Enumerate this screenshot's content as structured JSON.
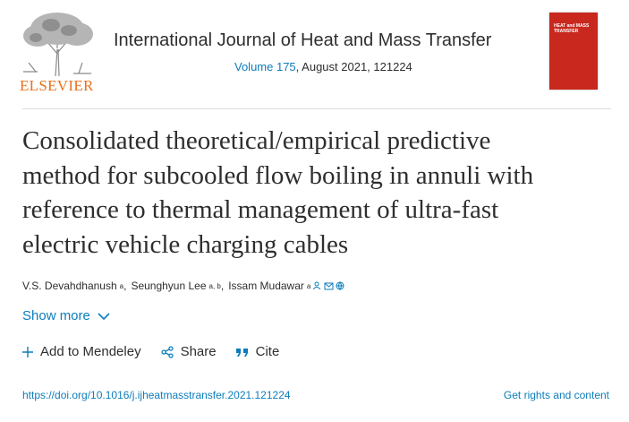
{
  "header": {
    "publisher": "ELSEVIER",
    "journal": "International Journal of Heat and Mass Transfer",
    "volume_link": "Volume 175",
    "issue_info": ", August 2021, 121224",
    "cover_title": "HEAT and MASS TRANSFER"
  },
  "article": {
    "title_lines": [
      "Consolidated theoretical/empirical predictive",
      "method for subcooled flow boiling in annuli with",
      "reference to thermal management of ultra-fast",
      "electric vehicle charging cables"
    ],
    "authors": [
      {
        "name": "V.S. Devahdhanush",
        "affiliation": "a"
      },
      {
        "name": "Seunghyun Lee",
        "affiliation": "a, b"
      },
      {
        "name": "Issam Mudawar",
        "affiliation": "a"
      }
    ],
    "author_separator": ",",
    "show_more": "Show more"
  },
  "actions": [
    "Add to Mendeley",
    "Share",
    "Cite"
  ],
  "footer": {
    "doi": "https://doi.org/10.1016/j.ijheatmasstransfer.2021.121224",
    "rights": "Get rights and content"
  }
}
